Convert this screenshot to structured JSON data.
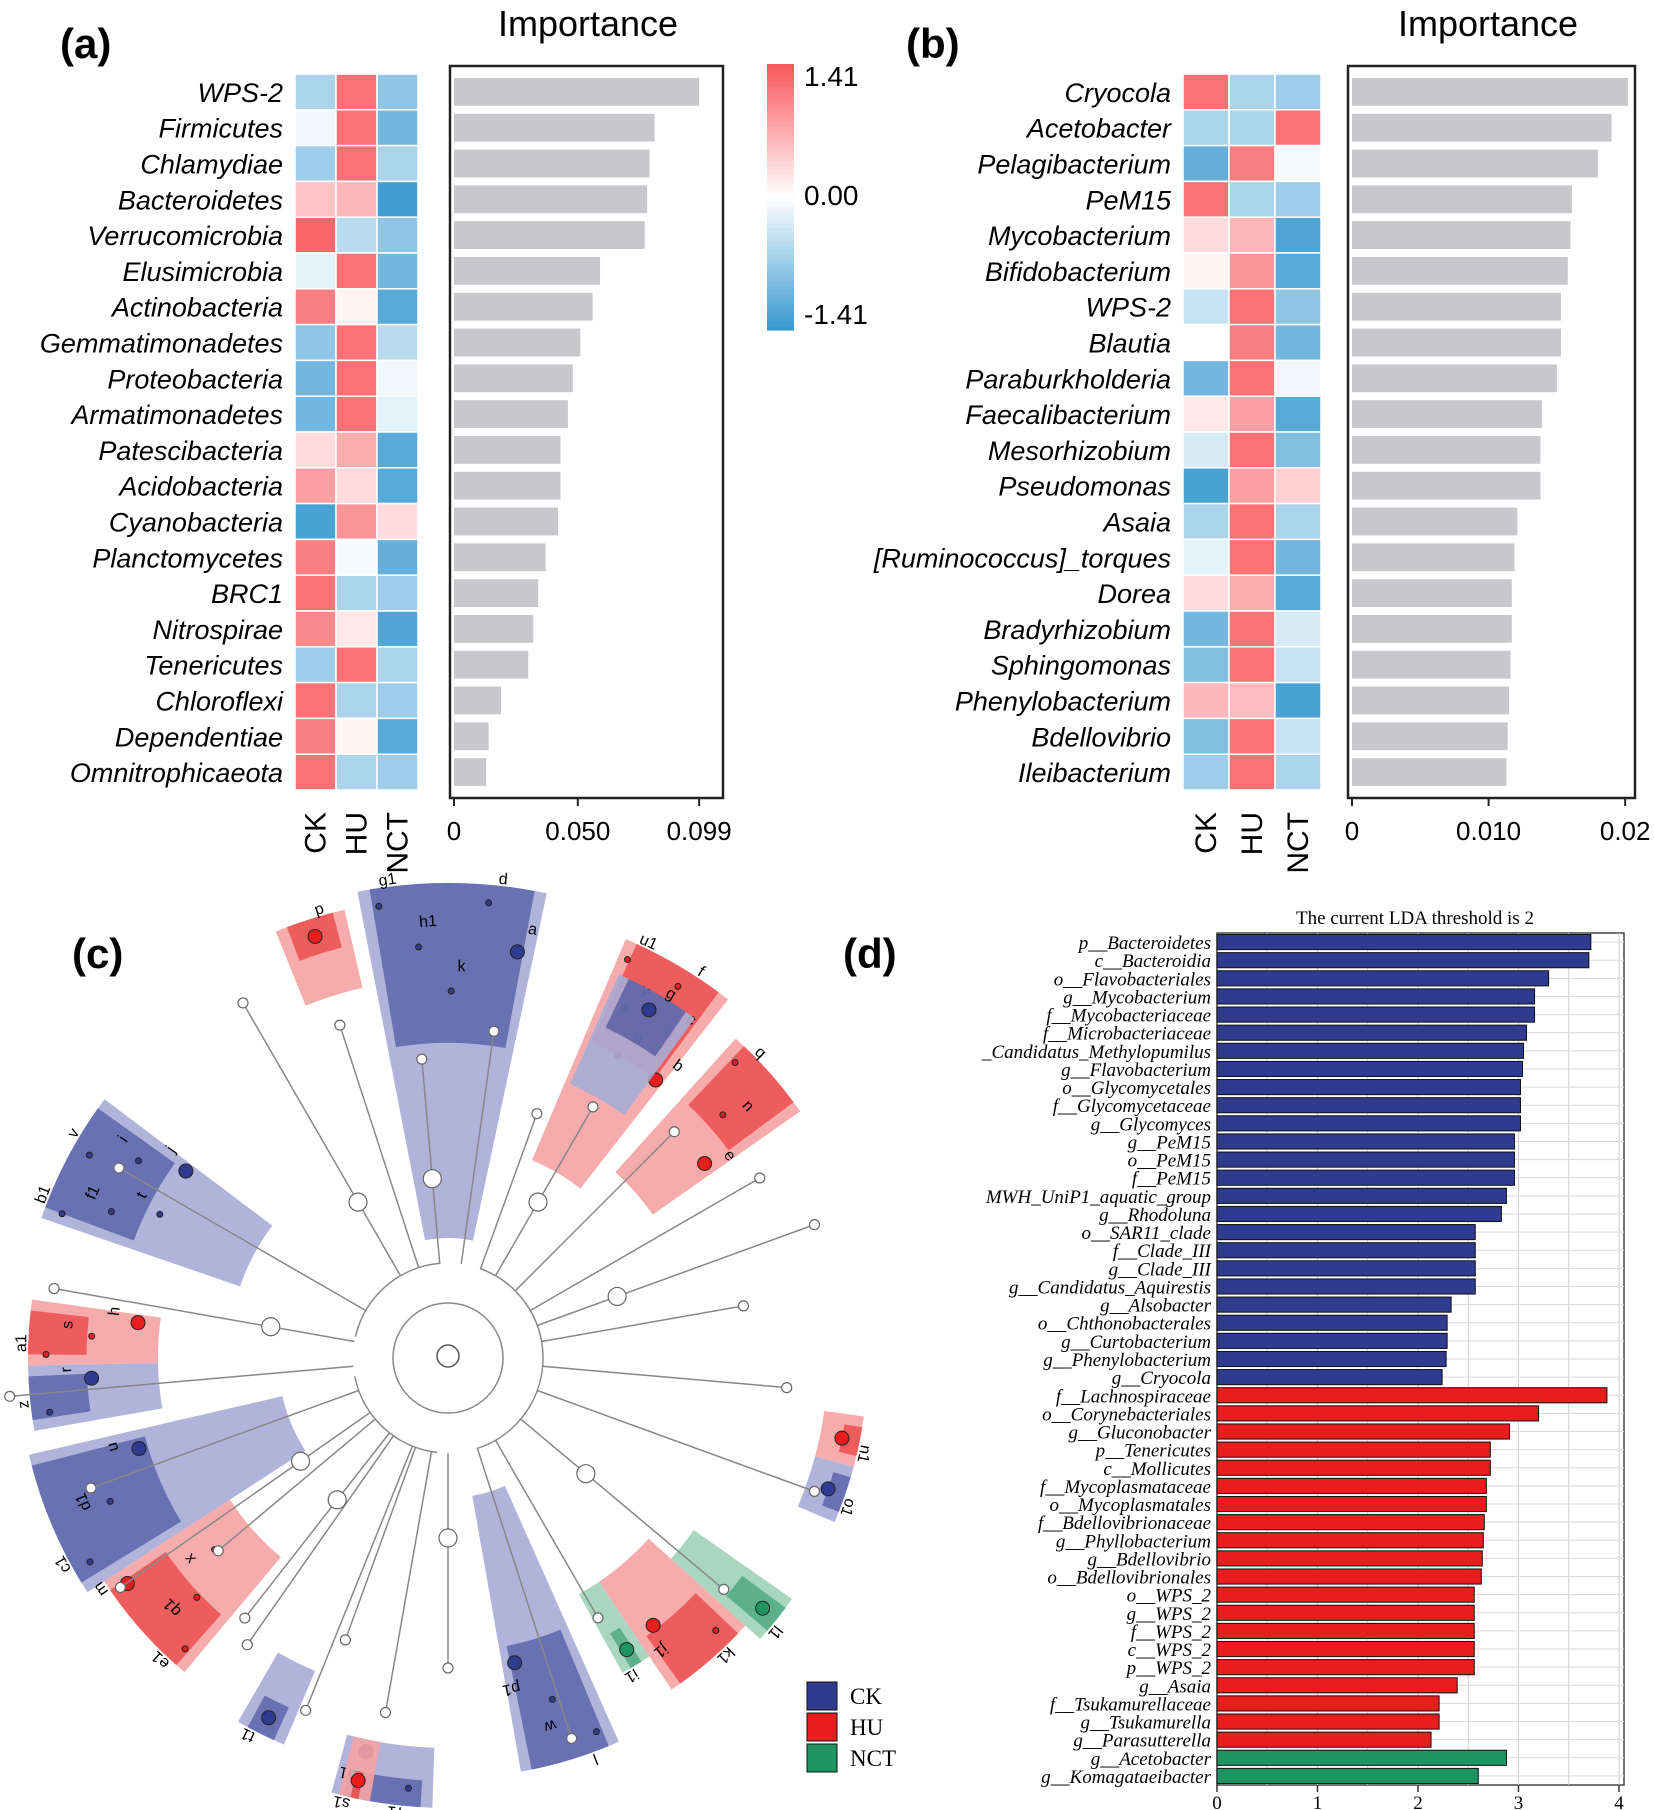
{
  "colors": {
    "heat_high": "#f8595e",
    "heat_mid": "#ffffff",
    "heat_low": "#3a9ad0",
    "importance_bar": "#c8c8cc",
    "ck": "#2e3b8f",
    "hu": "#e81d1d",
    "nct": "#1e9460",
    "ck_light": "#a7acd6",
    "hu_light": "#f5a3a3",
    "nct_light": "#9fd2b8"
  },
  "chart_data": [
    {
      "panel_label": "(a)",
      "type": "bar",
      "title": "Importance",
      "orientation": "horizontal",
      "heatmap_columns": [
        "CK",
        "HU",
        "NCT"
      ],
      "colorbar": {
        "ticks": [
          "1.41",
          "0.00",
          "-1.41"
        ],
        "range": [
          -1.41,
          1.41
        ]
      },
      "xticks": [
        "0",
        "0.050",
        "0.099"
      ],
      "xlim": [
        0,
        0.105
      ],
      "rows": [
        {
          "taxon": "WPS-2",
          "importance": 0.099,
          "heat": [
            -0.6,
            1.2,
            -0.8
          ]
        },
        {
          "taxon": "Firmicutes",
          "importance": 0.081,
          "heat": [
            -0.1,
            1.2,
            -1.0
          ]
        },
        {
          "taxon": "Chlamydiae",
          "importance": 0.079,
          "heat": [
            -0.7,
            1.2,
            -0.6
          ]
        },
        {
          "taxon": "Bacteroidetes",
          "importance": 0.078,
          "heat": [
            0.5,
            0.6,
            -1.35
          ]
        },
        {
          "taxon": "Verrucomicrobia",
          "importance": 0.077,
          "heat": [
            1.3,
            -0.5,
            -0.8
          ]
        },
        {
          "taxon": "Elusimicrobia",
          "importance": 0.059,
          "heat": [
            -0.2,
            1.2,
            -1.0
          ]
        },
        {
          "taxon": "Actinobacteria",
          "importance": 0.056,
          "heat": [
            1.1,
            0.1,
            -1.2
          ]
        },
        {
          "taxon": "Gemmatimonadetes",
          "importance": 0.051,
          "heat": [
            -0.8,
            1.2,
            -0.5
          ]
        },
        {
          "taxon": "Proteobacteria",
          "importance": 0.048,
          "heat": [
            -1.0,
            1.2,
            -0.1
          ]
        },
        {
          "taxon": "Armatimonadetes",
          "importance": 0.046,
          "heat": [
            -1.0,
            1.2,
            -0.2
          ]
        },
        {
          "taxon": "Patescibacteria",
          "importance": 0.043,
          "heat": [
            0.3,
            0.7,
            -1.2
          ]
        },
        {
          "taxon": "Acidobacteria",
          "importance": 0.043,
          "heat": [
            0.8,
            0.3,
            -1.2
          ]
        },
        {
          "taxon": "Cyanobacteria",
          "importance": 0.042,
          "heat": [
            -1.3,
            0.9,
            0.3
          ]
        },
        {
          "taxon": "Planctomycetes",
          "importance": 0.037,
          "heat": [
            1.1,
            -0.05,
            -1.1
          ]
        },
        {
          "taxon": "BRC1",
          "importance": 0.034,
          "heat": [
            1.2,
            -0.6,
            -0.7
          ]
        },
        {
          "taxon": "Nitrospirae",
          "importance": 0.032,
          "heat": [
            1.0,
            0.2,
            -1.25
          ]
        },
        {
          "taxon": "Tenericutes",
          "importance": 0.03,
          "heat": [
            -0.7,
            1.2,
            -0.6
          ]
        },
        {
          "taxon": "Chloroflexi",
          "importance": 0.019,
          "heat": [
            1.2,
            -0.6,
            -0.7
          ]
        },
        {
          "taxon": "Dependentiae",
          "importance": 0.014,
          "heat": [
            1.1,
            0.1,
            -1.2
          ]
        },
        {
          "taxon": "Omnitrophicaeota",
          "importance": 0.013,
          "heat": [
            1.2,
            -0.6,
            -0.7
          ]
        }
      ]
    },
    {
      "panel_label": "(b)",
      "type": "bar",
      "title": "Importance",
      "orientation": "horizontal",
      "heatmap_columns": [
        "CK",
        "HU",
        "NCT"
      ],
      "xticks": [
        "0",
        "0.010",
        "0.02"
      ],
      "xlim": [
        0,
        0.0205
      ],
      "rows": [
        {
          "taxon": "Cryocola",
          "importance": 0.0202,
          "heat": [
            1.2,
            -0.6,
            -0.7
          ]
        },
        {
          "taxon": "Acetobacter",
          "importance": 0.019,
          "heat": [
            -0.6,
            -0.6,
            1.2
          ]
        },
        {
          "taxon": "Pelagibacterium",
          "importance": 0.018,
          "heat": [
            -1.1,
            1.1,
            -0.05
          ]
        },
        {
          "taxon": "PeM15",
          "importance": 0.0161,
          "heat": [
            1.2,
            -0.6,
            -0.7
          ]
        },
        {
          "taxon": "Mycobacterium",
          "importance": 0.016,
          "heat": [
            0.3,
            0.6,
            -1.25
          ]
        },
        {
          "taxon": "Bifidobacterium",
          "importance": 0.0158,
          "heat": [
            0.1,
            0.9,
            -1.2
          ]
        },
        {
          "taxon": "WPS-2",
          "importance": 0.0153,
          "heat": [
            -0.4,
            1.2,
            -0.8
          ]
        },
        {
          "taxon": "Blautia",
          "importance": 0.0153,
          "heat": [
            0.0,
            1.1,
            -1.0
          ]
        },
        {
          "taxon": "Paraburkholderia",
          "importance": 0.015,
          "heat": [
            -1.0,
            1.2,
            -0.1
          ]
        },
        {
          "taxon": "Faecalibacterium",
          "importance": 0.0139,
          "heat": [
            0.2,
            0.8,
            -1.2
          ]
        },
        {
          "taxon": "Mesorhizobium",
          "importance": 0.0138,
          "heat": [
            -0.3,
            1.2,
            -0.9
          ]
        },
        {
          "taxon": "Pseudomonas",
          "importance": 0.0138,
          "heat": [
            -1.3,
            0.8,
            0.4
          ]
        },
        {
          "taxon": "Asaia",
          "importance": 0.0121,
          "heat": [
            -0.6,
            1.2,
            -0.6
          ]
        },
        {
          "taxon": "[Ruminococcus]_torques",
          "importance": 0.0119,
          "heat": [
            -0.2,
            1.2,
            -1.0
          ]
        },
        {
          "taxon": "Dorea",
          "importance": 0.0117,
          "heat": [
            0.3,
            0.7,
            -1.2
          ]
        },
        {
          "taxon": "Bradyrhizobium",
          "importance": 0.0117,
          "heat": [
            -1.0,
            1.2,
            -0.3
          ]
        },
        {
          "taxon": "Sphingomonas",
          "importance": 0.0116,
          "heat": [
            -0.9,
            1.2,
            -0.4
          ]
        },
        {
          "taxon": "Phenylobacterium",
          "importance": 0.0115,
          "heat": [
            0.6,
            0.55,
            -1.3
          ]
        },
        {
          "taxon": "Bdellovibrio",
          "importance": 0.0114,
          "heat": [
            -0.9,
            1.2,
            -0.4
          ]
        },
        {
          "taxon": "Ileibacterium",
          "importance": 0.0113,
          "heat": [
            -0.7,
            1.2,
            -0.6
          ]
        }
      ]
    },
    {
      "panel_label": "(c)",
      "type": "cladogram",
      "legend": [
        {
          "label": "CK",
          "group": "CK"
        },
        {
          "label": "HU",
          "group": "HU"
        },
        {
          "label": "NCT",
          "group": "NCT"
        }
      ],
      "clades": [
        {
          "group": "CK",
          "labels": [
            "g1",
            "h1",
            "k",
            "d",
            "a"
          ]
        },
        {
          "group": "HU",
          "labels": [
            "p"
          ]
        },
        {
          "group": "HU",
          "labels": [
            "u1",
            "y",
            "o",
            "f",
            "c",
            "b"
          ]
        },
        {
          "group": "HU",
          "labels": [
            "q",
            "n",
            "e"
          ]
        },
        {
          "group": "CK",
          "labels": [
            "g"
          ]
        },
        {
          "group": "CK",
          "labels": [
            "b1",
            "f1",
            "t",
            "v",
            "i",
            "j"
          ]
        },
        {
          "group": "CK",
          "labels": [
            "z",
            "r"
          ]
        },
        {
          "group": "HU",
          "labels": [
            "a1",
            "s",
            "h"
          ]
        },
        {
          "group": "CK",
          "labels": [
            "c1",
            "d1",
            "u"
          ]
        },
        {
          "group": "HU",
          "labels": [
            "e1",
            "q1",
            "x",
            "m"
          ]
        },
        {
          "group": "CK",
          "labels": [
            "o1"
          ]
        },
        {
          "group": "HU",
          "labels": [
            "n1"
          ]
        },
        {
          "group": "NCT",
          "labels": [
            "l1"
          ]
        },
        {
          "group": "HU",
          "labels": [
            "k1",
            "j1"
          ]
        },
        {
          "group": "NCT",
          "labels": [
            "i1"
          ]
        },
        {
          "group": "CK",
          "labels": [
            "l",
            "w",
            "p1"
          ]
        },
        {
          "group": "CK",
          "labels": [
            "t1"
          ]
        },
        {
          "group": "CK",
          "labels": [
            "r1",
            "m1"
          ]
        },
        {
          "group": "HU",
          "labels": [
            "s1"
          ]
        }
      ]
    },
    {
      "panel_label": "(d)",
      "type": "bar",
      "orientation": "horizontal",
      "title": "The current LDA threshold is 2",
      "xticks": [
        "0",
        "1",
        "2",
        "3",
        "4"
      ],
      "xlim": [
        0,
        4.05
      ],
      "bars": [
        {
          "label": "p__Bacteroidetes",
          "value": 3.72,
          "group": "CK"
        },
        {
          "label": "c__Bacteroidia",
          "value": 3.7,
          "group": "CK"
        },
        {
          "label": "o__Flavobacteriales",
          "value": 3.3,
          "group": "CK"
        },
        {
          "label": "g__Mycobacterium",
          "value": 3.16,
          "group": "CK"
        },
        {
          "label": "f__Mycobacteriaceae",
          "value": 3.16,
          "group": "CK"
        },
        {
          "label": "f__Microbacteriaceae",
          "value": 3.08,
          "group": "CK"
        },
        {
          "label": "_Candidatus_Methylopumilus",
          "value": 3.05,
          "group": "CK"
        },
        {
          "label": "g__Flavobacterium",
          "value": 3.04,
          "group": "CK"
        },
        {
          "label": "o__Glycomycetales",
          "value": 3.02,
          "group": "CK"
        },
        {
          "label": "f__Glycomycetaceae",
          "value": 3.02,
          "group": "CK"
        },
        {
          "label": "g__Glycomyces",
          "value": 3.02,
          "group": "CK"
        },
        {
          "label": "g__PeM15",
          "value": 2.96,
          "group": "CK"
        },
        {
          "label": "o__PeM15",
          "value": 2.96,
          "group": "CK"
        },
        {
          "label": "f__PeM15",
          "value": 2.96,
          "group": "CK"
        },
        {
          "label": "MWH_UniP1_aquatic_group",
          "value": 2.88,
          "group": "CK"
        },
        {
          "label": "g__Rhodoluna",
          "value": 2.83,
          "group": "CK"
        },
        {
          "label": "o__SAR11_clade",
          "value": 2.57,
          "group": "CK"
        },
        {
          "label": "f__Clade_III",
          "value": 2.57,
          "group": "CK"
        },
        {
          "label": "g__Clade_III",
          "value": 2.57,
          "group": "CK"
        },
        {
          "label": "g__Candidatus_Aquirestis",
          "value": 2.57,
          "group": "CK"
        },
        {
          "label": "g__Alsobacter",
          "value": 2.33,
          "group": "CK"
        },
        {
          "label": "o__Chthonobacterales",
          "value": 2.29,
          "group": "CK"
        },
        {
          "label": "g__Curtobacterium",
          "value": 2.29,
          "group": "CK"
        },
        {
          "label": "g__Phenylobacterium",
          "value": 2.28,
          "group": "CK"
        },
        {
          "label": "g__Cryocola",
          "value": 2.24,
          "group": "CK"
        },
        {
          "label": "f__Lachnospiraceae",
          "value": 3.88,
          "group": "HU"
        },
        {
          "label": "o__Corynebacteriales",
          "value": 3.2,
          "group": "HU"
        },
        {
          "label": "g__Gluconobacter",
          "value": 2.91,
          "group": "HU"
        },
        {
          "label": "p__Tenericutes",
          "value": 2.72,
          "group": "HU"
        },
        {
          "label": "c__Mollicutes",
          "value": 2.72,
          "group": "HU"
        },
        {
          "label": "f__Mycoplasmataceae",
          "value": 2.68,
          "group": "HU"
        },
        {
          "label": "o__Mycoplasmatales",
          "value": 2.68,
          "group": "HU"
        },
        {
          "label": "f__Bdellovibrionaceae",
          "value": 2.66,
          "group": "HU"
        },
        {
          "label": "g__Phyllobacterium",
          "value": 2.65,
          "group": "HU"
        },
        {
          "label": "g__Bdellovibrio",
          "value": 2.64,
          "group": "HU"
        },
        {
          "label": "o__Bdellovibrionales",
          "value": 2.63,
          "group": "HU"
        },
        {
          "label": "o__WPS_2",
          "value": 2.56,
          "group": "HU"
        },
        {
          "label": "g__WPS_2",
          "value": 2.56,
          "group": "HU"
        },
        {
          "label": "f__WPS_2",
          "value": 2.56,
          "group": "HU"
        },
        {
          "label": "c__WPS_2",
          "value": 2.56,
          "group": "HU"
        },
        {
          "label": "p__WPS_2",
          "value": 2.56,
          "group": "HU"
        },
        {
          "label": "g__Asaia",
          "value": 2.39,
          "group": "HU"
        },
        {
          "label": "f__Tsukamurellaceae",
          "value": 2.21,
          "group": "HU"
        },
        {
          "label": "g__Tsukamurella",
          "value": 2.21,
          "group": "HU"
        },
        {
          "label": "g__Parasutterella",
          "value": 2.13,
          "group": "HU"
        },
        {
          "label": "g__Acetobacter",
          "value": 2.88,
          "group": "NCT"
        },
        {
          "label": "g__Komagataeibacter",
          "value": 2.6,
          "group": "NCT"
        }
      ]
    }
  ]
}
